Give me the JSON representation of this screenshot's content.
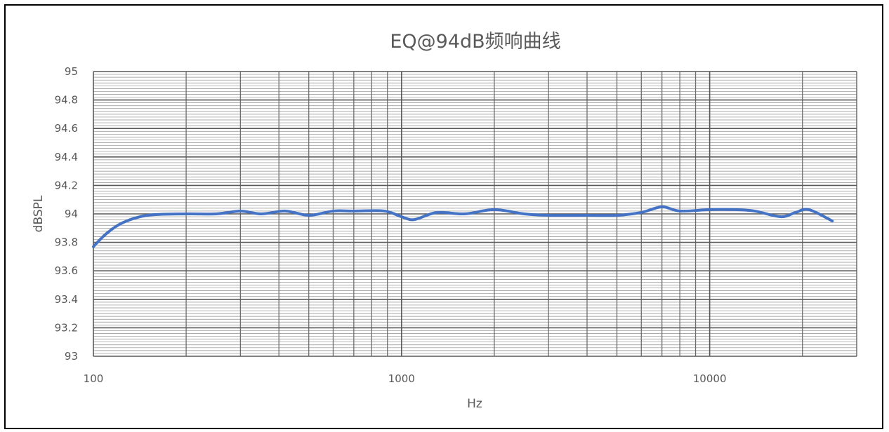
{
  "chart_data": {
    "type": "line",
    "title": "EQ@94dB频响曲线",
    "xlabel": "Hz",
    "ylabel": "dBSPL",
    "x_scale": "log",
    "xlim": [
      100,
      30000
    ],
    "ylim": [
      93,
      95
    ],
    "x_ticks": [
      "100",
      "1000",
      "10000"
    ],
    "y_ticks": [
      "95",
      "94.8",
      "94.6",
      "94.4",
      "94.2",
      "94",
      "93.8",
      "93.6",
      "93.4",
      "93.2",
      "93"
    ],
    "grid": true,
    "legend": "none",
    "series": [
      {
        "color": "#4472C4",
        "x": [
          100,
          110,
          125,
          150,
          200,
          250,
          300,
          350,
          420,
          500,
          600,
          700,
          880,
          1000,
          1100,
          1300,
          1600,
          2000,
          2500,
          3000,
          4000,
          5000,
          6000,
          7000,
          8000,
          10000,
          12000,
          14000,
          17000,
          19000,
          21000,
          25000
        ],
        "y": [
          93.77,
          93.86,
          93.94,
          93.99,
          94.0,
          94.0,
          94.02,
          94.0,
          94.02,
          93.99,
          94.02,
          94.02,
          94.02,
          93.98,
          93.96,
          94.01,
          94.0,
          94.03,
          94.0,
          93.99,
          93.99,
          93.99,
          94.01,
          94.05,
          94.02,
          94.03,
          94.03,
          94.02,
          93.98,
          94.01,
          94.03,
          93.95
        ]
      }
    ]
  }
}
